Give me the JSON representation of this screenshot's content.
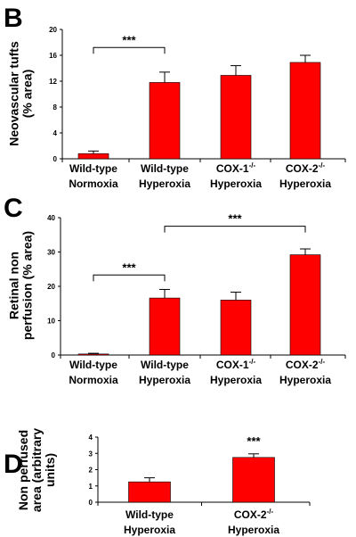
{
  "colors": {
    "bar": "#ff0000",
    "axis": "#000000"
  },
  "chart_data": [
    {
      "panel": "B",
      "type": "bar",
      "ylabel_lines": [
        "Neovascular tufts",
        "(% area)"
      ],
      "ylim": [
        0,
        20
      ],
      "yticks": [
        0,
        4,
        8,
        12,
        16,
        20
      ],
      "categories": [
        {
          "line1": "Wild-type",
          "sup": "",
          "line2": "Normoxia"
        },
        {
          "line1": "Wild-type",
          "sup": "",
          "line2": "Hyperoxia"
        },
        {
          "line1": "COX-1",
          "sup": "-/-",
          "line2": "Hyperoxia"
        },
        {
          "line1": "COX-2",
          "sup": "-/-",
          "line2": "Hyperoxia"
        }
      ],
      "values": [
        0.8,
        11.8,
        12.9,
        14.9
      ],
      "errors": [
        0.4,
        1.6,
        1.5,
        1.1
      ],
      "significance": [
        {
          "from": 0,
          "to": 1,
          "label": "***",
          "level": 17.2
        }
      ]
    },
    {
      "panel": "C",
      "type": "bar",
      "ylabel_lines": [
        "Retinal non",
        "perfusion (% area)"
      ],
      "ylim": [
        0,
        40
      ],
      "yticks": [
        0,
        10,
        20,
        30,
        40
      ],
      "categories": [
        {
          "line1": "Wild-type",
          "sup": "",
          "line2": "Normoxia"
        },
        {
          "line1": "Wild-type",
          "sup": "",
          "line2": "Hyperoxia"
        },
        {
          "line1": "COX-1",
          "sup": "-/-",
          "line2": "Hyperoxia"
        },
        {
          "line1": "COX-2",
          "sup": "-/-",
          "line2": "Hyperoxia"
        }
      ],
      "values": [
        0.3,
        16.6,
        16.0,
        29.2
      ],
      "errors": [
        0.2,
        2.5,
        2.3,
        1.7
      ],
      "significance": [
        {
          "from": 0,
          "to": 1,
          "label": "***",
          "level": 23.3
        },
        {
          "from": 1,
          "to": 3,
          "label": "***",
          "level": 37.5
        }
      ]
    },
    {
      "panel": "D",
      "type": "bar",
      "ylabel_lines": [
        "Non perfused",
        "area (arbitrary",
        "units)"
      ],
      "ylim": [
        0,
        4
      ],
      "yticks": [
        0,
        1,
        2,
        3,
        4
      ],
      "categories": [
        {
          "line1": "Wild-type",
          "sup": "",
          "line2": "Hyperoxia"
        },
        {
          "line1": "COX-2",
          "sup": "-/-",
          "line2": "Hyperoxia"
        }
      ],
      "values": [
        1.25,
        2.75
      ],
      "errors": [
        0.25,
        0.22
      ],
      "star_labels": [
        "",
        "***"
      ]
    }
  ]
}
